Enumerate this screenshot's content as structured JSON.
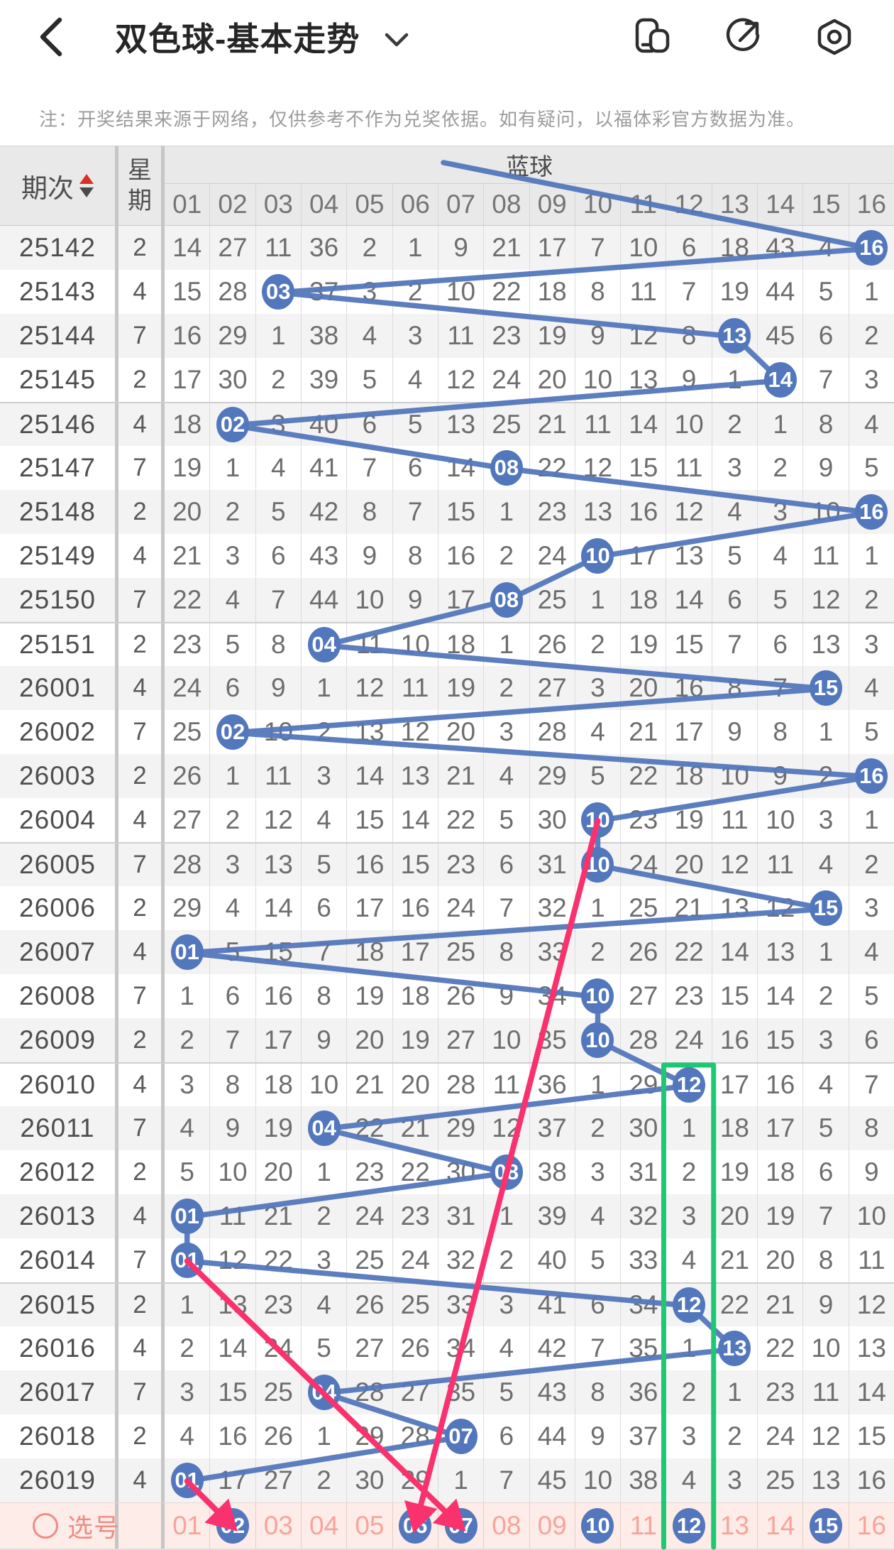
{
  "topbar": {
    "title": "双色球-基本走势",
    "icons": [
      "back-icon",
      "chevron-down-icon",
      "float-window-icon",
      "share-icon",
      "hexagon-record-icon"
    ]
  },
  "note": "注：开奖结果来源于网络，仅供参考不作为兑奖依据。如有疑问，以福体彩官方数据为准。",
  "table": {
    "col_period": "期次",
    "col_week": "星期",
    "group_header": "蓝球",
    "ball_columns": [
      "01",
      "02",
      "03",
      "04",
      "05",
      "06",
      "07",
      "08",
      "09",
      "10",
      "11",
      "12",
      "13",
      "14",
      "15",
      "16"
    ],
    "rows": [
      {
        "period": "25142",
        "week": "2",
        "winner": 16,
        "cells": [
          "14",
          "27",
          "11",
          "36",
          "2",
          "1",
          "9",
          "21",
          "17",
          "7",
          "10",
          "6",
          "18",
          "43",
          "4",
          "16"
        ]
      },
      {
        "period": "25143",
        "week": "4",
        "winner": 3,
        "cells": [
          "15",
          "28",
          "03",
          "37",
          "3",
          "2",
          "10",
          "22",
          "18",
          "8",
          "11",
          "7",
          "19",
          "44",
          "5",
          "1"
        ]
      },
      {
        "period": "25144",
        "week": "7",
        "winner": 13,
        "cells": [
          "16",
          "29",
          "1",
          "38",
          "4",
          "3",
          "11",
          "23",
          "19",
          "9",
          "12",
          "8",
          "13",
          "45",
          "6",
          "2"
        ]
      },
      {
        "period": "25145",
        "week": "2",
        "winner": 14,
        "cells": [
          "17",
          "30",
          "2",
          "39",
          "5",
          "4",
          "12",
          "24",
          "20",
          "10",
          "13",
          "9",
          "1",
          "14",
          "7",
          "3"
        ]
      },
      {
        "period": "25146",
        "week": "4",
        "winner": 2,
        "cells": [
          "18",
          "02",
          "3",
          "40",
          "6",
          "5",
          "13",
          "25",
          "21",
          "11",
          "14",
          "10",
          "2",
          "1",
          "8",
          "4"
        ]
      },
      {
        "period": "25147",
        "week": "7",
        "winner": 8,
        "cells": [
          "19",
          "1",
          "4",
          "41",
          "7",
          "6",
          "14",
          "08",
          "22",
          "12",
          "15",
          "11",
          "3",
          "2",
          "9",
          "5"
        ]
      },
      {
        "period": "25148",
        "week": "2",
        "winner": 16,
        "cells": [
          "20",
          "2",
          "5",
          "42",
          "8",
          "7",
          "15",
          "1",
          "23",
          "13",
          "16",
          "12",
          "4",
          "3",
          "10",
          "16"
        ]
      },
      {
        "period": "25149",
        "week": "4",
        "winner": 10,
        "cells": [
          "21",
          "3",
          "6",
          "43",
          "9",
          "8",
          "16",
          "2",
          "24",
          "10",
          "17",
          "13",
          "5",
          "4",
          "11",
          "1"
        ]
      },
      {
        "period": "25150",
        "week": "7",
        "winner": 8,
        "cells": [
          "22",
          "4",
          "7",
          "44",
          "10",
          "9",
          "17",
          "08",
          "25",
          "1",
          "18",
          "14",
          "6",
          "5",
          "12",
          "2"
        ]
      },
      {
        "period": "25151",
        "week": "2",
        "winner": 4,
        "cells": [
          "23",
          "5",
          "8",
          "04",
          "11",
          "10",
          "18",
          "1",
          "26",
          "2",
          "19",
          "15",
          "7",
          "6",
          "13",
          "3"
        ]
      },
      {
        "period": "26001",
        "week": "4",
        "winner": 15,
        "cells": [
          "24",
          "6",
          "9",
          "1",
          "12",
          "11",
          "19",
          "2",
          "27",
          "3",
          "20",
          "16",
          "8",
          "7",
          "15",
          "4"
        ]
      },
      {
        "period": "26002",
        "week": "7",
        "winner": 2,
        "cells": [
          "25",
          "02",
          "10",
          "2",
          "13",
          "12",
          "20",
          "3",
          "28",
          "4",
          "21",
          "17",
          "9",
          "8",
          "1",
          "5"
        ]
      },
      {
        "period": "26003",
        "week": "2",
        "winner": 16,
        "cells": [
          "26",
          "1",
          "11",
          "3",
          "14",
          "13",
          "21",
          "4",
          "29",
          "5",
          "22",
          "18",
          "10",
          "9",
          "2",
          "16"
        ]
      },
      {
        "period": "26004",
        "week": "4",
        "winner": 10,
        "cells": [
          "27",
          "2",
          "12",
          "4",
          "15",
          "14",
          "22",
          "5",
          "30",
          "10",
          "23",
          "19",
          "11",
          "10",
          "3",
          "1"
        ]
      },
      {
        "period": "26005",
        "week": "7",
        "winner": 10,
        "cells": [
          "28",
          "3",
          "13",
          "5",
          "16",
          "15",
          "23",
          "6",
          "31",
          "10",
          "24",
          "20",
          "12",
          "11",
          "4",
          "2"
        ]
      },
      {
        "period": "26006",
        "week": "2",
        "winner": 15,
        "cells": [
          "29",
          "4",
          "14",
          "6",
          "17",
          "16",
          "24",
          "7",
          "32",
          "1",
          "25",
          "21",
          "13",
          "12",
          "15",
          "3"
        ]
      },
      {
        "period": "26007",
        "week": "4",
        "winner": 1,
        "cells": [
          "01",
          "5",
          "15",
          "7",
          "18",
          "17",
          "25",
          "8",
          "33",
          "2",
          "26",
          "22",
          "14",
          "13",
          "1",
          "4"
        ]
      },
      {
        "period": "26008",
        "week": "7",
        "winner": 10,
        "cells": [
          "1",
          "6",
          "16",
          "8",
          "19",
          "18",
          "26",
          "9",
          "34",
          "10",
          "27",
          "23",
          "15",
          "14",
          "2",
          "5"
        ]
      },
      {
        "period": "26009",
        "week": "2",
        "winner": 10,
        "cells": [
          "2",
          "7",
          "17",
          "9",
          "20",
          "19",
          "27",
          "10",
          "35",
          "10",
          "28",
          "24",
          "16",
          "15",
          "3",
          "6"
        ]
      },
      {
        "period": "26010",
        "week": "4",
        "winner": 12,
        "cells": [
          "3",
          "8",
          "18",
          "10",
          "21",
          "20",
          "28",
          "11",
          "36",
          "1",
          "29",
          "12",
          "17",
          "16",
          "4",
          "7"
        ]
      },
      {
        "period": "26011",
        "week": "7",
        "winner": 4,
        "cells": [
          "4",
          "9",
          "19",
          "04",
          "22",
          "21",
          "29",
          "12",
          "37",
          "2",
          "30",
          "1",
          "18",
          "17",
          "5",
          "8"
        ]
      },
      {
        "period": "26012",
        "week": "2",
        "winner": 8,
        "cells": [
          "5",
          "10",
          "20",
          "1",
          "23",
          "22",
          "30",
          "08",
          "38",
          "3",
          "31",
          "2",
          "19",
          "18",
          "6",
          "9"
        ]
      },
      {
        "period": "26013",
        "week": "4",
        "winner": 1,
        "cells": [
          "01",
          "11",
          "21",
          "2",
          "24",
          "23",
          "31",
          "1",
          "39",
          "4",
          "32",
          "3",
          "20",
          "19",
          "7",
          "10"
        ]
      },
      {
        "period": "26014",
        "week": "7",
        "winner": 1,
        "cells": [
          "01",
          "12",
          "22",
          "3",
          "25",
          "24",
          "32",
          "2",
          "40",
          "5",
          "33",
          "4",
          "21",
          "20",
          "8",
          "11"
        ]
      },
      {
        "period": "26015",
        "week": "2",
        "winner": 12,
        "cells": [
          "1",
          "13",
          "23",
          "4",
          "26",
          "25",
          "33",
          "3",
          "41",
          "6",
          "34",
          "12",
          "22",
          "21",
          "9",
          "12"
        ]
      },
      {
        "period": "26016",
        "week": "4",
        "winner": 13,
        "cells": [
          "2",
          "14",
          "24",
          "5",
          "27",
          "26",
          "34",
          "4",
          "42",
          "7",
          "35",
          "1",
          "13",
          "22",
          "10",
          "13"
        ]
      },
      {
        "period": "26017",
        "week": "7",
        "winner": 4,
        "cells": [
          "3",
          "15",
          "25",
          "04",
          "28",
          "27",
          "35",
          "5",
          "43",
          "8",
          "36",
          "2",
          "1",
          "23",
          "11",
          "14"
        ]
      },
      {
        "period": "26018",
        "week": "2",
        "winner": 7,
        "cells": [
          "4",
          "16",
          "26",
          "1",
          "29",
          "28",
          "07",
          "6",
          "44",
          "9",
          "37",
          "3",
          "2",
          "24",
          "12",
          "15"
        ]
      },
      {
        "period": "26019",
        "week": "4",
        "winner": 1,
        "cells": [
          "01",
          "17",
          "27",
          "2",
          "30",
          "29",
          "1",
          "7",
          "45",
          "10",
          "38",
          "4",
          "3",
          "25",
          "13",
          "16"
        ]
      }
    ]
  },
  "select_row": {
    "label": "选号",
    "numbers": [
      "01",
      "02",
      "03",
      "04",
      "05",
      "06",
      "07",
      "08",
      "09",
      "10",
      "11",
      "12",
      "13",
      "14",
      "15",
      "16"
    ],
    "selected": [
      2,
      6,
      7,
      10,
      12,
      15
    ]
  },
  "annotations": {
    "trend_line_color": "#5377bc",
    "ball_color": "#5377bc",
    "arrow_color": "#f9326e",
    "green_box_color": "#1ec873",
    "green_box": {
      "column": 12,
      "from_period": "26010"
    },
    "arrows": [
      {
        "from_period": "26004",
        "from_column": 10,
        "to_select": 6
      },
      {
        "from_period": "26014",
        "from_column": 1,
        "to_select": 7
      },
      {
        "from_period": "26019",
        "from_column": 1,
        "to_select": 2
      }
    ]
  }
}
